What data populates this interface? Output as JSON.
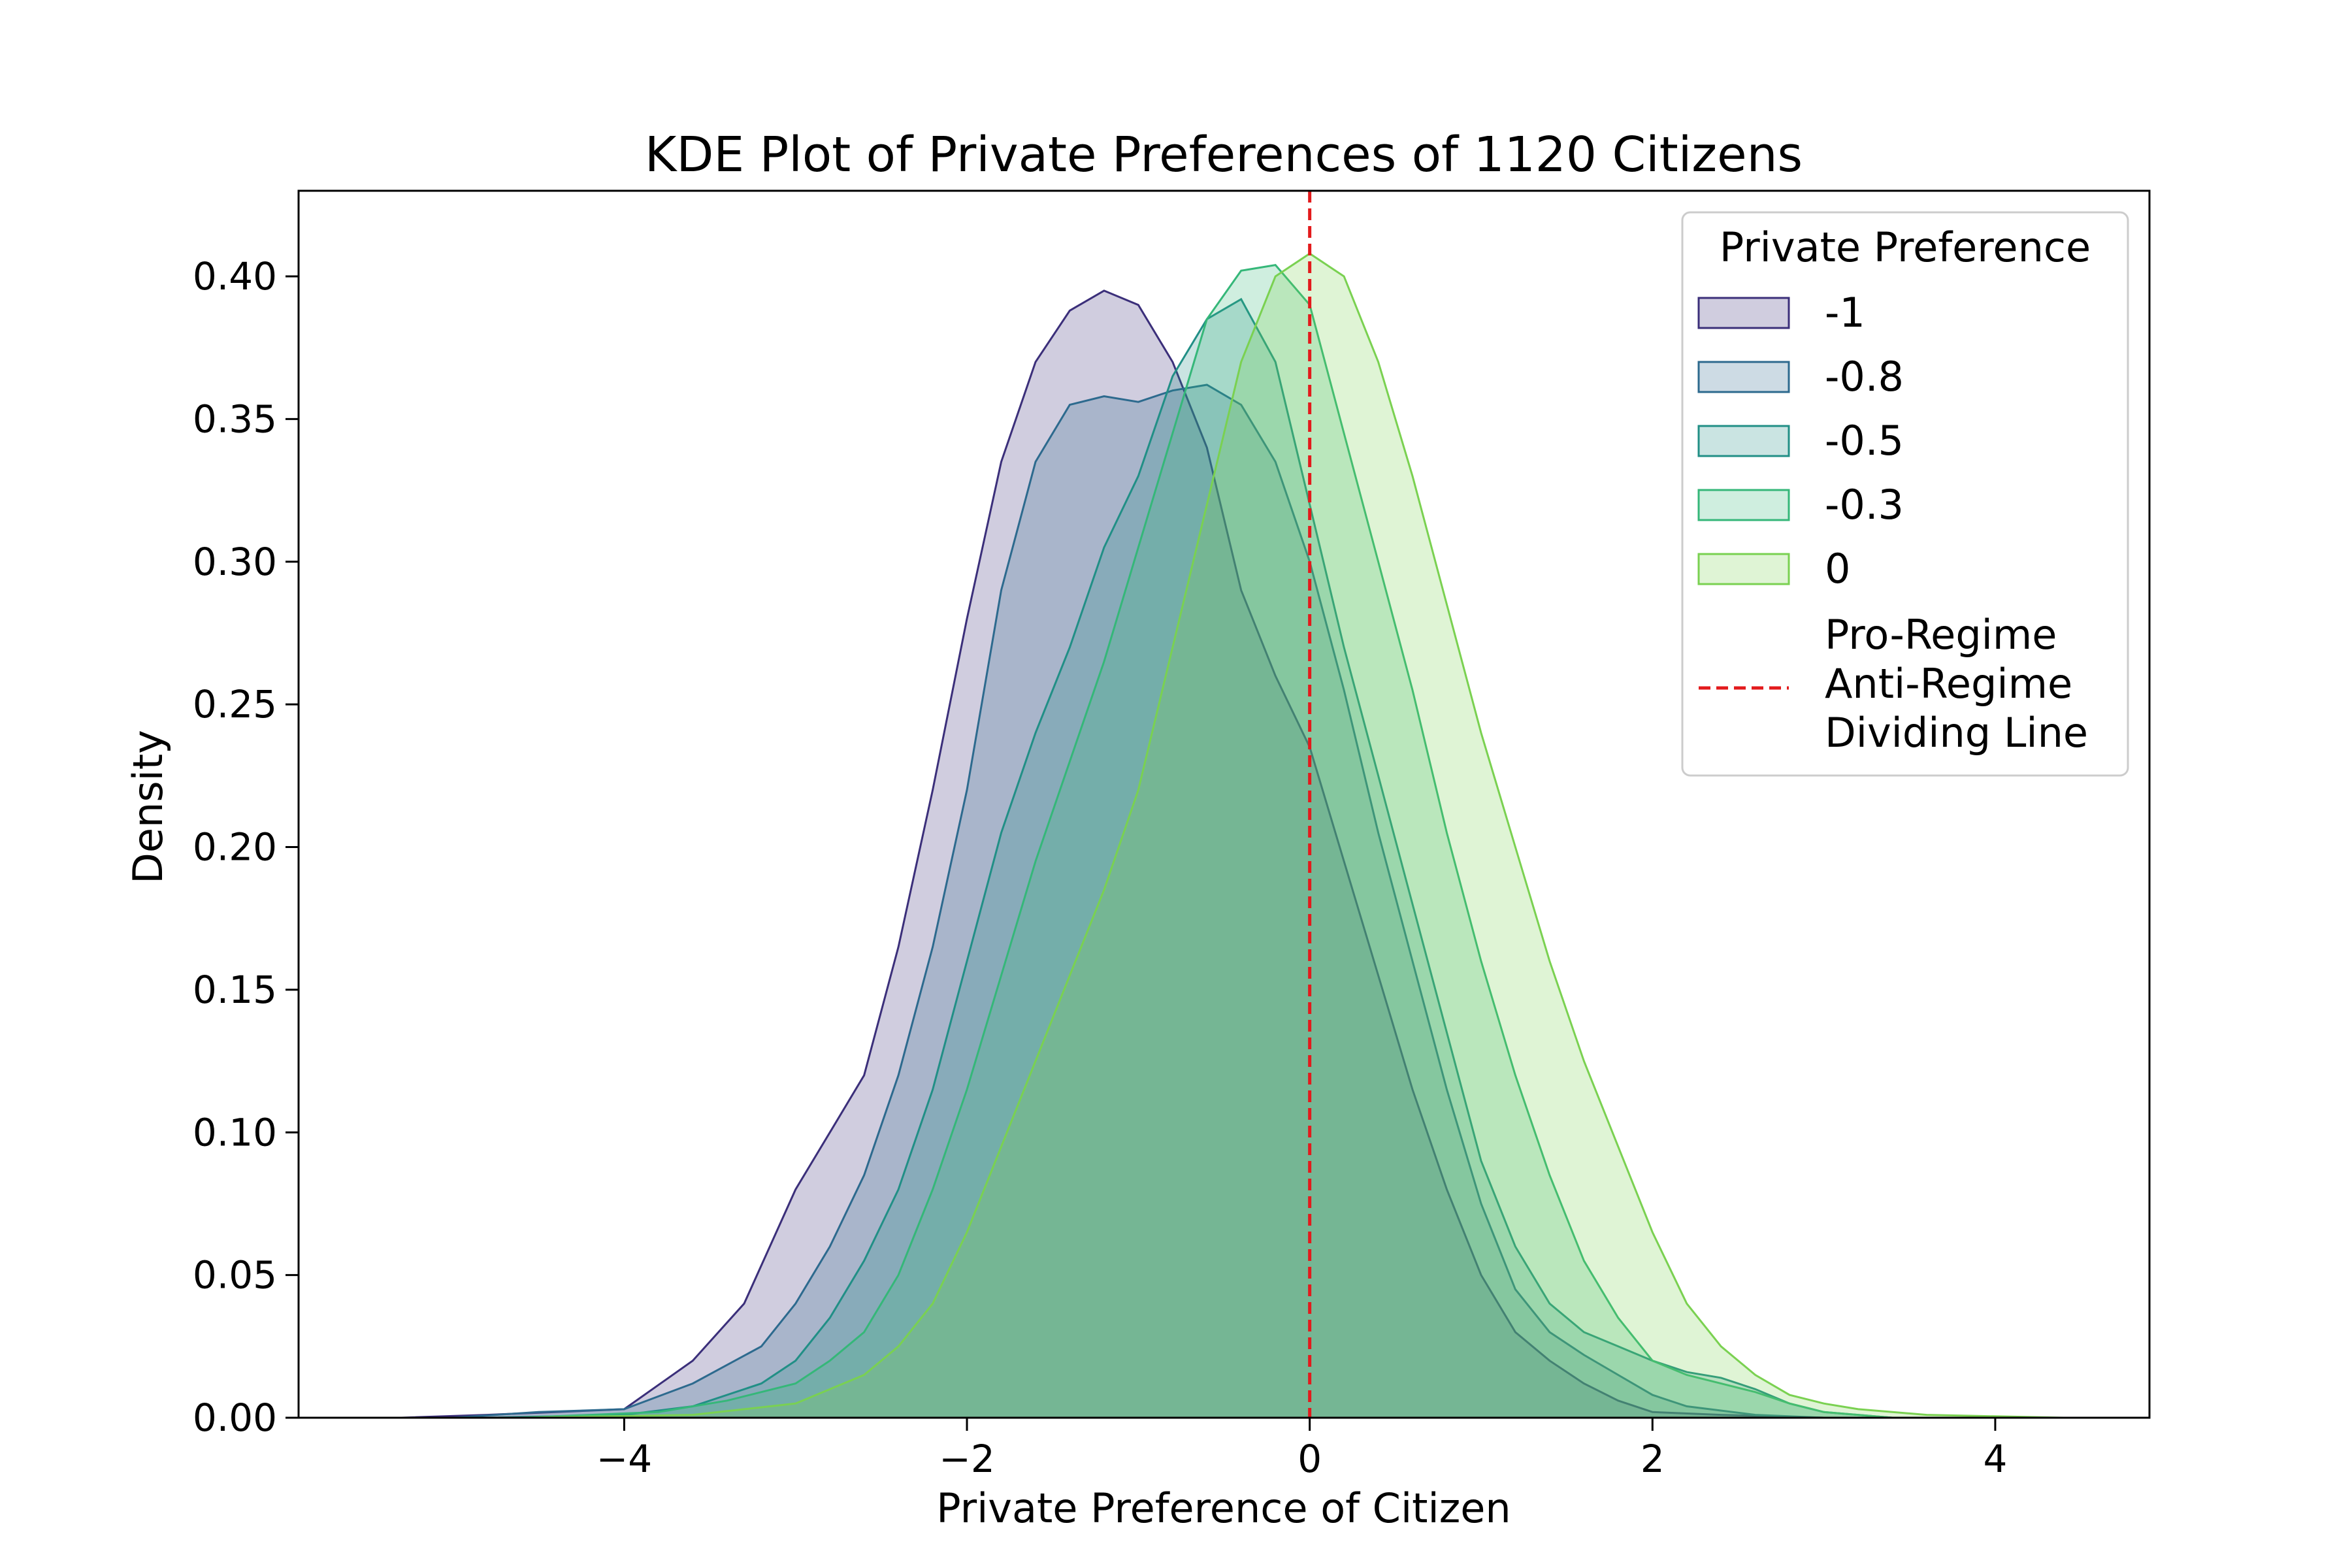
{
  "chart_data": {
    "type": "area",
    "title": "KDE Plot of Private Preferences of 1120 Citizens",
    "xlabel": "Private Preference of Citizen",
    "ylabel": "Density",
    "xlim": [
      -5.9,
      4.9
    ],
    "ylim": [
      0,
      0.43
    ],
    "xticks": [
      -4,
      -2,
      0,
      2,
      4
    ],
    "xtick_labels": [
      "−4",
      "−2",
      "0",
      "2",
      "4"
    ],
    "yticks": [
      0.0,
      0.05,
      0.1,
      0.15,
      0.2,
      0.25,
      0.3,
      0.35,
      0.4
    ],
    "ytick_labels": [
      "0.00",
      "0.05",
      "0.10",
      "0.15",
      "0.20",
      "0.25",
      "0.30",
      "0.35",
      "0.40"
    ],
    "grid": false,
    "legend": {
      "title": "Private Preference",
      "placement": "top-right",
      "line_entry_label": [
        "Pro-Regime",
        "Anti-Regime",
        "Dividing Line"
      ]
    },
    "vline": {
      "x": 0,
      "color": "#e31a1c",
      "style": "dashed"
    },
    "series": [
      {
        "name": "-1",
        "color": "#3b2f7a",
        "points": [
          [
            -5.3,
            0
          ],
          [
            -4.8,
            0.001
          ],
          [
            -4.0,
            0.003
          ],
          [
            -3.6,
            0.02
          ],
          [
            -3.3,
            0.04
          ],
          [
            -3.0,
            0.08
          ],
          [
            -2.8,
            0.1
          ],
          [
            -2.6,
            0.12
          ],
          [
            -2.4,
            0.165
          ],
          [
            -2.2,
            0.22
          ],
          [
            -2.0,
            0.28
          ],
          [
            -1.8,
            0.335
          ],
          [
            -1.6,
            0.37
          ],
          [
            -1.4,
            0.388
          ],
          [
            -1.2,
            0.395
          ],
          [
            -1.0,
            0.39
          ],
          [
            -0.8,
            0.37
          ],
          [
            -0.6,
            0.34
          ],
          [
            -0.4,
            0.29
          ],
          [
            -0.2,
            0.26
          ],
          [
            0.0,
            0.235
          ],
          [
            0.2,
            0.195
          ],
          [
            0.4,
            0.155
          ],
          [
            0.6,
            0.115
          ],
          [
            0.8,
            0.08
          ],
          [
            1.0,
            0.05
          ],
          [
            1.2,
            0.03
          ],
          [
            1.4,
            0.02
          ],
          [
            1.6,
            0.012
          ],
          [
            1.8,
            0.006
          ],
          [
            2.0,
            0.002
          ],
          [
            2.4,
            0.001
          ],
          [
            3.0,
            0
          ]
        ]
      },
      {
        "name": "-0.8",
        "color": "#2d6a8e",
        "points": [
          [
            -5.0,
            0
          ],
          [
            -4.5,
            0.002
          ],
          [
            -4.0,
            0.003
          ],
          [
            -3.6,
            0.012
          ],
          [
            -3.2,
            0.025
          ],
          [
            -3.0,
            0.04
          ],
          [
            -2.8,
            0.06
          ],
          [
            -2.6,
            0.085
          ],
          [
            -2.4,
            0.12
          ],
          [
            -2.2,
            0.165
          ],
          [
            -2.0,
            0.22
          ],
          [
            -1.8,
            0.29
          ],
          [
            -1.6,
            0.335
          ],
          [
            -1.4,
            0.355
          ],
          [
            -1.2,
            0.358
          ],
          [
            -1.0,
            0.356
          ],
          [
            -0.8,
            0.36
          ],
          [
            -0.6,
            0.362
          ],
          [
            -0.4,
            0.355
          ],
          [
            -0.2,
            0.335
          ],
          [
            0.0,
            0.3
          ],
          [
            0.2,
            0.255
          ],
          [
            0.4,
            0.205
          ],
          [
            0.6,
            0.16
          ],
          [
            0.8,
            0.115
          ],
          [
            1.0,
            0.075
          ],
          [
            1.2,
            0.045
          ],
          [
            1.4,
            0.03
          ],
          [
            1.6,
            0.022
          ],
          [
            1.8,
            0.015
          ],
          [
            2.0,
            0.008
          ],
          [
            2.2,
            0.004
          ],
          [
            2.6,
            0.001
          ],
          [
            3.0,
            0
          ]
        ]
      },
      {
        "name": "-0.5",
        "color": "#218f86",
        "points": [
          [
            -4.8,
            0
          ],
          [
            -4.0,
            0.001
          ],
          [
            -3.6,
            0.004
          ],
          [
            -3.2,
            0.012
          ],
          [
            -3.0,
            0.02
          ],
          [
            -2.8,
            0.035
          ],
          [
            -2.6,
            0.055
          ],
          [
            -2.4,
            0.08
          ],
          [
            -2.2,
            0.115
          ],
          [
            -2.0,
            0.16
          ],
          [
            -1.8,
            0.205
          ],
          [
            -1.6,
            0.24
          ],
          [
            -1.4,
            0.27
          ],
          [
            -1.2,
            0.305
          ],
          [
            -1.0,
            0.33
          ],
          [
            -0.8,
            0.365
          ],
          [
            -0.6,
            0.385
          ],
          [
            -0.4,
            0.392
          ],
          [
            -0.2,
            0.37
          ],
          [
            0.0,
            0.32
          ],
          [
            0.2,
            0.27
          ],
          [
            0.4,
            0.225
          ],
          [
            0.6,
            0.18
          ],
          [
            0.8,
            0.135
          ],
          [
            1.0,
            0.09
          ],
          [
            1.2,
            0.06
          ],
          [
            1.4,
            0.04
          ],
          [
            1.6,
            0.03
          ],
          [
            1.8,
            0.025
          ],
          [
            2.0,
            0.02
          ],
          [
            2.2,
            0.016
          ],
          [
            2.4,
            0.014
          ],
          [
            2.6,
            0.01
          ],
          [
            2.8,
            0.005
          ],
          [
            3.0,
            0.002
          ],
          [
            3.4,
            0
          ]
        ]
      },
      {
        "name": "-0.3",
        "color": "#35b779",
        "points": [
          [
            -4.6,
            0
          ],
          [
            -3.8,
            0.002
          ],
          [
            -3.4,
            0.006
          ],
          [
            -3.0,
            0.012
          ],
          [
            -2.8,
            0.02
          ],
          [
            -2.6,
            0.03
          ],
          [
            -2.4,
            0.05
          ],
          [
            -2.2,
            0.08
          ],
          [
            -2.0,
            0.115
          ],
          [
            -1.8,
            0.155
          ],
          [
            -1.6,
            0.195
          ],
          [
            -1.4,
            0.23
          ],
          [
            -1.2,
            0.265
          ],
          [
            -1.0,
            0.305
          ],
          [
            -0.8,
            0.345
          ],
          [
            -0.6,
            0.385
          ],
          [
            -0.4,
            0.402
          ],
          [
            -0.2,
            0.404
          ],
          [
            0.0,
            0.39
          ],
          [
            0.2,
            0.345
          ],
          [
            0.4,
            0.3
          ],
          [
            0.6,
            0.255
          ],
          [
            0.8,
            0.205
          ],
          [
            1.0,
            0.16
          ],
          [
            1.2,
            0.12
          ],
          [
            1.4,
            0.085
          ],
          [
            1.6,
            0.055
          ],
          [
            1.8,
            0.035
          ],
          [
            2.0,
            0.02
          ],
          [
            2.2,
            0.015
          ],
          [
            2.4,
            0.012
          ],
          [
            2.6,
            0.009
          ],
          [
            2.8,
            0.005
          ],
          [
            3.0,
            0.002
          ],
          [
            3.4,
            0
          ]
        ]
      },
      {
        "name": "0",
        "color": "#7ad151",
        "points": [
          [
            -4.6,
            0
          ],
          [
            -3.6,
            0.001
          ],
          [
            -3.0,
            0.005
          ],
          [
            -2.6,
            0.015
          ],
          [
            -2.4,
            0.025
          ],
          [
            -2.2,
            0.04
          ],
          [
            -2.0,
            0.065
          ],
          [
            -1.8,
            0.095
          ],
          [
            -1.6,
            0.125
          ],
          [
            -1.4,
            0.155
          ],
          [
            -1.2,
            0.185
          ],
          [
            -1.0,
            0.22
          ],
          [
            -0.8,
            0.27
          ],
          [
            -0.6,
            0.32
          ],
          [
            -0.4,
            0.37
          ],
          [
            -0.2,
            0.4
          ],
          [
            0.0,
            0.408
          ],
          [
            0.2,
            0.4
          ],
          [
            0.4,
            0.37
          ],
          [
            0.6,
            0.33
          ],
          [
            0.8,
            0.285
          ],
          [
            1.0,
            0.24
          ],
          [
            1.2,
            0.2
          ],
          [
            1.4,
            0.16
          ],
          [
            1.6,
            0.125
          ],
          [
            1.8,
            0.095
          ],
          [
            2.0,
            0.065
          ],
          [
            2.2,
            0.04
          ],
          [
            2.4,
            0.025
          ],
          [
            2.6,
            0.015
          ],
          [
            2.8,
            0.008
          ],
          [
            3.0,
            0.005
          ],
          [
            3.2,
            0.003
          ],
          [
            3.6,
            0.001
          ],
          [
            4.4,
            0
          ]
        ]
      }
    ]
  }
}
